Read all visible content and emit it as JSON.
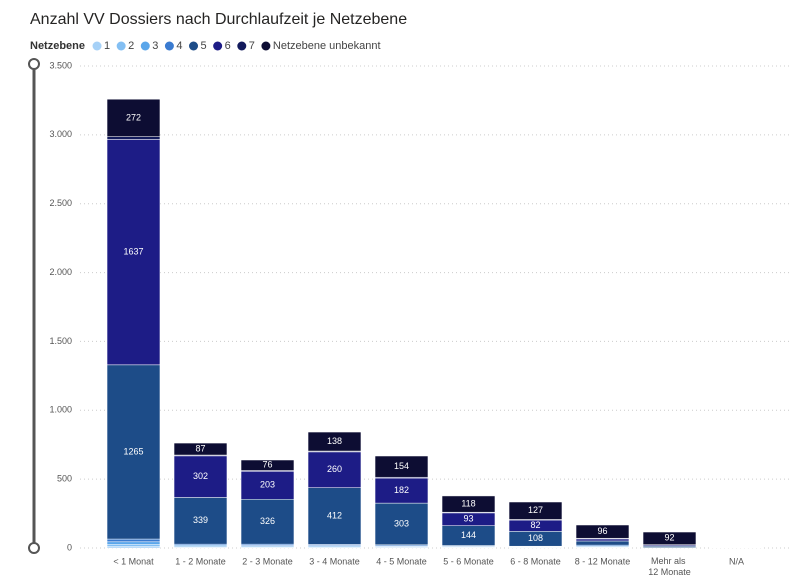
{
  "chart_data": {
    "type": "stacked_bar",
    "title": "Anzahl VV Dossiers nach Durchlaufzeit je Netzebene",
    "legend_title": "Netzebene",
    "categories": [
      "< 1 Monat",
      "1 - 2 Monate",
      "2 - 3 Monate",
      "3 - 4 Monate",
      "4 - 5 Monate",
      "5 - 6 Monate",
      "6 - 8 Monate",
      "8 - 12 Monate",
      "Mehr als 12 Monate",
      "N/A"
    ],
    "series": [
      {
        "name": "1",
        "color": "#a6d1f7",
        "values": [
          10,
          5,
          5,
          4,
          4,
          3,
          2,
          3,
          0,
          0
        ]
      },
      {
        "name": "2",
        "color": "#83bff3",
        "values": [
          15,
          5,
          5,
          6,
          5,
          4,
          3,
          4,
          0,
          0
        ]
      },
      {
        "name": "3",
        "color": "#5aa6ea",
        "values": [
          20,
          10,
          8,
          8,
          6,
          5,
          4,
          6,
          0,
          0
        ]
      },
      {
        "name": "4",
        "color": "#3a7bd0",
        "values": [
          20,
          8,
          10,
          8,
          8,
          6,
          4,
          8,
          3,
          0
        ]
      },
      {
        "name": "5",
        "color": "#1d4c88",
        "values": [
          1265,
          339,
          326,
          412,
          303,
          144,
          108,
          30,
          10,
          0
        ]
      },
      {
        "name": "6",
        "color": "#1d1c86",
        "values": [
          1637,
          302,
          203,
          260,
          182,
          93,
          82,
          15,
          8,
          0
        ]
      },
      {
        "name": "7",
        "color": "#121a5c",
        "values": [
          20,
          6,
          6,
          6,
          6,
          5,
          4,
          5,
          3,
          0
        ]
      },
      {
        "name": "Netzebene unbekannt",
        "color": "#0d0d33",
        "values": [
          272,
          87,
          76,
          138,
          154,
          118,
          127,
          96,
          92,
          3
        ]
      }
    ],
    "ylim": [
      0,
      3500
    ],
    "yticks": [
      0,
      {
        "value": 500,
        "label": "500"
      },
      {
        "value": 1000,
        "label": "1.000"
      },
      {
        "value": 1500,
        "label": "1.500"
      },
      {
        "value": 2000,
        "label": "2.000"
      },
      {
        "value": 2500,
        "label": "2.500"
      },
      {
        "value": 3000,
        "label": "3.000"
      },
      {
        "value": 3500,
        "label": "3.500"
      }
    ],
    "grid": true
  }
}
